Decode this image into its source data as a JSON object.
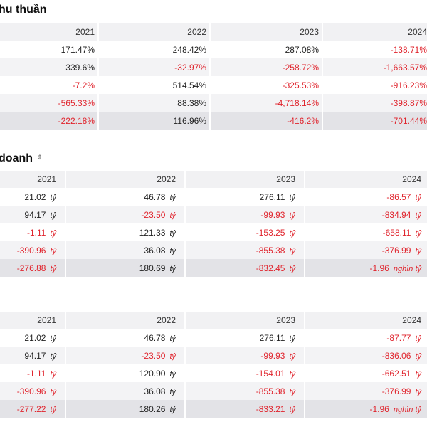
{
  "section1": {
    "title": "hu thuần",
    "years": [
      "2021",
      "2022",
      "2023",
      "2024"
    ],
    "rows": [
      [
        "171.47%",
        "248.42%",
        "287.08%",
        "-138.71%"
      ],
      [
        "339.6%",
        "-32.97%",
        "-258.72%",
        "-1,663.57%"
      ],
      [
        "-7.2%",
        "514.54%",
        "-325.53%",
        "-916.23%"
      ],
      [
        "-565.33%",
        "88.38%",
        "-4,718.14%",
        "-398.87%"
      ],
      [
        "-222.18%",
        "116.96%",
        "-416.2%",
        "-701.44%"
      ]
    ]
  },
  "section2": {
    "title": "doanh",
    "sort_icon": "⇕",
    "years": [
      "2021",
      "2022",
      "2023",
      "2024"
    ],
    "rows": [
      [
        [
          "21.02",
          "tỷ"
        ],
        [
          "46.78",
          "tỷ"
        ],
        [
          "276.11",
          "tỷ"
        ],
        [
          "-86.57",
          "tỷ"
        ]
      ],
      [
        [
          "94.17",
          "tỷ"
        ],
        [
          "-23.50",
          "tỷ"
        ],
        [
          "-99.93",
          "tỷ"
        ],
        [
          "-834.94",
          "tỷ"
        ]
      ],
      [
        [
          "-1.11",
          "tỷ"
        ],
        [
          "121.33",
          "tỷ"
        ],
        [
          "-153.25",
          "tỷ"
        ],
        [
          "-658.11",
          "tỷ"
        ]
      ],
      [
        [
          "-390.96",
          "tỷ"
        ],
        [
          "36.08",
          "tỷ"
        ],
        [
          "-855.38",
          "tỷ"
        ],
        [
          "-376.99",
          "tỷ"
        ]
      ],
      [
        [
          "-276.88",
          "tỷ"
        ],
        [
          "180.69",
          "tỷ"
        ],
        [
          "-832.45",
          "tỷ"
        ],
        [
          "-1.96",
          "nghìn tỷ"
        ]
      ]
    ]
  },
  "section3": {
    "years": [
      "2021",
      "2022",
      "2023",
      "2024"
    ],
    "rows": [
      [
        [
          "21.02",
          "tỷ"
        ],
        [
          "46.78",
          "tỷ"
        ],
        [
          "276.11",
          "tỷ"
        ],
        [
          "-87.77",
          "tỷ"
        ]
      ],
      [
        [
          "94.17",
          "tỷ"
        ],
        [
          "-23.50",
          "tỷ"
        ],
        [
          "-99.93",
          "tỷ"
        ],
        [
          "-836.06",
          "tỷ"
        ]
      ],
      [
        [
          "-1.11",
          "tỷ"
        ],
        [
          "120.90",
          "tỷ"
        ],
        [
          "-154.01",
          "tỷ"
        ],
        [
          "-662.51",
          "tỷ"
        ]
      ],
      [
        [
          "-390.96",
          "tỷ"
        ],
        [
          "36.08",
          "tỷ"
        ],
        [
          "-855.38",
          "tỷ"
        ],
        [
          "-376.99",
          "tỷ"
        ]
      ],
      [
        [
          "-277.22",
          "tỷ"
        ],
        [
          "180.26",
          "tỷ"
        ],
        [
          "-833.21",
          "tỷ"
        ],
        [
          "-1.96",
          "nghìn tỷ"
        ]
      ]
    ]
  },
  "colors": {
    "negative": "#e0242d",
    "positive": "#222222",
    "header_bg": "#f1f1f3",
    "total_bg": "#e3e3e7"
  }
}
